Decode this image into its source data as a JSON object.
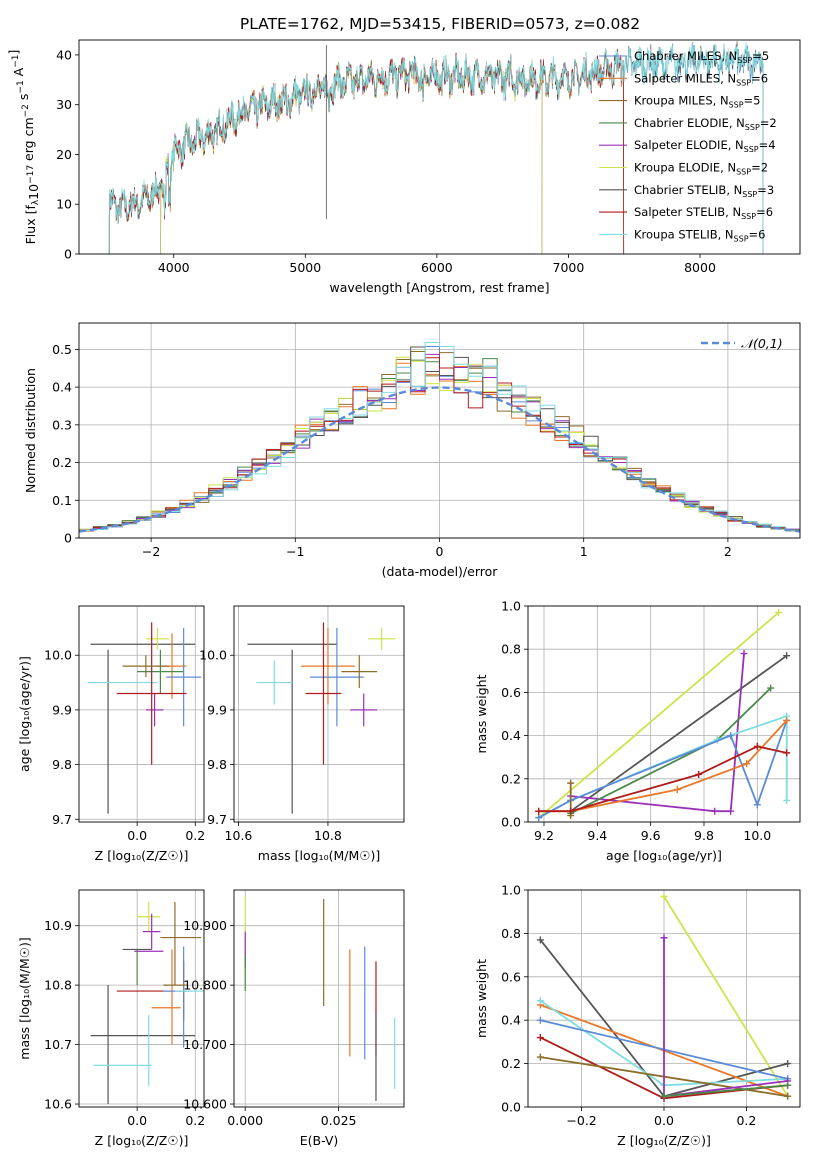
{
  "title": "PLATE=1762, MJD=53415, FIBERID=0573, z=0.082",
  "colors": {
    "Chabrier MILES": "#5b8bd8",
    "Salpeter MILES": "#e8782a",
    "Kroupa MILES": "#8c6d2c",
    "Chabrier ELODIE": "#4a8a4a",
    "Salpeter ELODIE": "#9b30b8",
    "Kroupa ELODIE": "#cfe34a",
    "Chabrier STELIB": "#555555",
    "Salpeter STELIB": "#b01c1c",
    "Kroupa STELIB": "#7fdde0"
  },
  "chart_data": [
    {
      "type": "line",
      "id": "spectrum",
      "xlabel": "wavelength [Angstrom, rest frame]",
      "ylabel": "Flux [f",
      "ylabel_parts": [
        "Flux [f",
        "λ",
        "10",
        "−17",
        " erg cm",
        "−2",
        " s",
        "−1",
        " A",
        "−1",
        "]"
      ],
      "xlim": [
        3280,
        8760
      ],
      "ylim": [
        0,
        43
      ],
      "xticks": [
        4000,
        5000,
        6000,
        7000,
        8000
      ],
      "yticks": [
        0,
        10,
        20,
        30,
        40
      ],
      "legend_position": "upper-right",
      "spectrum_knots": [
        [
          3510,
          10
        ],
        [
          3600,
          9
        ],
        [
          3800,
          11
        ],
        [
          3900,
          13
        ],
        [
          4000,
          20
        ],
        [
          4100,
          22
        ],
        [
          4300,
          24
        ],
        [
          4500,
          28
        ],
        [
          4800,
          30.5
        ],
        [
          5000,
          32
        ],
        [
          5200,
          34
        ],
        [
          5500,
          35
        ],
        [
          5800,
          36
        ],
        [
          6000,
          35.5
        ],
        [
          6300,
          35.5
        ],
        [
          6600,
          35
        ],
        [
          7000,
          35
        ],
        [
          7300,
          37
        ],
        [
          7500,
          38
        ],
        [
          7800,
          38
        ],
        [
          8000,
          38.5
        ],
        [
          8300,
          38.5
        ],
        [
          8500,
          38.5
        ]
      ],
      "series": [
        {
          "name": "Chabrier MILES",
          "nssp": "5",
          "lambda_min": 3510,
          "lambda_max": 8480
        },
        {
          "name": "Salpeter MILES",
          "nssp": "6",
          "lambda_min": 3510,
          "lambda_max": 7420
        },
        {
          "name": "Kroupa MILES",
          "nssp": "5",
          "lambda_min": 3510,
          "lambda_max": 7420
        },
        {
          "name": "Chabrier ELODIE",
          "nssp": "2",
          "lambda_min": 3900,
          "lambda_max": 6800
        },
        {
          "name": "Salpeter ELODIE",
          "nssp": "4",
          "lambda_min": 3900,
          "lambda_max": 6800
        },
        {
          "name": "Kroupa ELODIE",
          "nssp": "2",
          "lambda_min": 3900,
          "lambda_max": 6800
        },
        {
          "name": "Chabrier STELIB",
          "nssp": "3",
          "lambda_min": 3510,
          "lambda_max": 8480
        },
        {
          "name": "Salpeter STELIB",
          "nssp": "6",
          "lambda_min": 3510,
          "lambda_max": 7420
        },
        {
          "name": "Kroupa STELIB",
          "nssp": "6",
          "lambda_min": 3510,
          "lambda_max": 8480
        }
      ]
    },
    {
      "type": "bar",
      "id": "residuals",
      "xlabel": "(data-model)/error",
      "ylabel": "Normed distribution",
      "xlim": [
        -2.5,
        2.5
      ],
      "ylim": [
        0,
        0.57
      ],
      "xticks": [
        -2,
        -1,
        0,
        1,
        2
      ],
      "yticks": [
        0.0,
        0.1,
        0.2,
        0.3,
        0.4,
        0.5
      ],
      "grid": true,
      "bin_width": 0.1,
      "normal_curve": {
        "name": "𝒩(0,1)",
        "mu": 0,
        "sigma": 1,
        "color": "#5b8bd8"
      },
      "histograms": [
        {
          "name": "Chabrier MILES",
          "offset": 0.0
        },
        {
          "name": "Salpeter MILES",
          "offset": 0.03
        },
        {
          "name": "Kroupa MILES",
          "offset": -0.02
        },
        {
          "name": "Chabrier ELODIE",
          "offset": 0.05
        },
        {
          "name": "Salpeter ELODIE",
          "offset": -0.04
        },
        {
          "name": "Kroupa ELODIE",
          "offset": 0.06
        },
        {
          "name": "Chabrier STELIB",
          "offset": -0.01
        },
        {
          "name": "Salpeter STELIB",
          "offset": 0.02
        },
        {
          "name": "Kroupa STELIB",
          "offset": -0.05
        }
      ]
    },
    {
      "type": "scatter",
      "id": "age-vs-Z",
      "xlabel": "Z [log₁₀(Z/Z☉)]",
      "ylabel": "age  [log₁₀(age/yr)]",
      "xlim": [
        -0.2,
        0.23
      ],
      "ylim": [
        9.695,
        10.09
      ],
      "xticks": [
        0.0,
        0.2
      ],
      "yticks": [
        9.7,
        9.8,
        9.9,
        10.0
      ],
      "grid": true,
      "errorbars": [
        {
          "name": "Chabrier STELIB",
          "x": 0.02,
          "xerr": 0.18,
          "y": 10.02,
          "yerr": 0.0
        },
        {
          "name": "Chabrier STELIB",
          "x": -0.1,
          "xerr": 0.0,
          "y": 9.86,
          "yerr": 0.15
        },
        {
          "name": "Kroupa ELODIE",
          "x": 0.07,
          "xerr": 0.04,
          "y": 10.03,
          "yerr": 0.02
        },
        {
          "name": "Salpeter MILES",
          "x": 0.12,
          "xerr": 0.05,
          "y": 9.98,
          "yerr": 0.06
        },
        {
          "name": "Chabrier ELODIE",
          "x": 0.08,
          "xerr": 0.08,
          "y": 9.97,
          "yerr": 0.04
        },
        {
          "name": "Chabrier MILES",
          "x": 0.16,
          "xerr": 0.06,
          "y": 9.96,
          "yerr": 0.09
        },
        {
          "name": "Salpeter ELODIE",
          "x": 0.06,
          "xerr": 0.03,
          "y": 9.9,
          "yerr": 0.03
        },
        {
          "name": "Kroupa STELIB",
          "x": -0.05,
          "xerr": 0.12,
          "y": 9.95,
          "yerr": 0.0
        },
        {
          "name": "Salpeter STELIB",
          "x": 0.05,
          "xerr": 0.12,
          "y": 9.93,
          "yerr": 0.13
        },
        {
          "name": "Kroupa MILES",
          "x": 0.03,
          "xerr": 0.08,
          "y": 9.98,
          "yerr": 0.02
        }
      ]
    },
    {
      "type": "scatter",
      "id": "age-vs-mass",
      "xlabel": "mass [log₁₀(M/M☉)]",
      "ylabel": "",
      "xlim": [
        10.59,
        10.97
      ],
      "ylim": [
        9.695,
        10.09
      ],
      "xticks": [
        10.6,
        10.8
      ],
      "yticks": [
        9.7,
        9.8,
        9.9,
        10.0
      ],
      "grid": true,
      "errorbars": [
        {
          "name": "Chabrier STELIB",
          "x": 10.72,
          "xerr": 0.1,
          "y": 10.02,
          "yerr": 0.0
        },
        {
          "name": "Chabrier STELIB",
          "x": 10.72,
          "xerr": 0.0,
          "y": 9.86,
          "yerr": 0.15
        },
        {
          "name": "Kroupa STELIB",
          "x": 10.68,
          "xerr": 0.04,
          "y": 9.95,
          "yerr": 0.04
        },
        {
          "name": "Kroupa ELODIE",
          "x": 10.92,
          "xerr": 0.03,
          "y": 10.03,
          "yerr": 0.02
        },
        {
          "name": "Salpeter MILES",
          "x": 10.8,
          "xerr": 0.06,
          "y": 9.98,
          "yerr": 0.07
        },
        {
          "name": "Chabrier MILES",
          "x": 10.82,
          "xerr": 0.06,
          "y": 9.96,
          "yerr": 0.09
        },
        {
          "name": "Salpeter ELODIE",
          "x": 10.88,
          "xerr": 0.03,
          "y": 9.9,
          "yerr": 0.03
        },
        {
          "name": "Salpeter STELIB",
          "x": 10.79,
          "xerr": 0.04,
          "y": 9.93,
          "yerr": 0.13
        },
        {
          "name": "Kroupa MILES",
          "x": 10.87,
          "xerr": 0.04,
          "y": 9.97,
          "yerr": 0.03
        }
      ]
    },
    {
      "type": "line",
      "id": "mass-weight-vs-age",
      "xlabel": "age  [log₁₀(age/yr)]",
      "ylabel": "mass weight",
      "xlim": [
        9.14,
        10.16
      ],
      "ylim": [
        0,
        1.0
      ],
      "xticks": [
        9.2,
        9.4,
        9.6,
        9.8,
        10.0
      ],
      "yticks": [
        0.0,
        0.2,
        0.4,
        0.6,
        0.8,
        1.0
      ],
      "grid": true,
      "series": [
        {
          "name": "Kroupa ELODIE",
          "x": [
            9.18,
            10.08
          ],
          "y": [
            0.02,
            0.97
          ]
        },
        {
          "name": "Chabrier STELIB",
          "x": [
            9.3,
            10.11
          ],
          "y": [
            0.05,
            0.77
          ]
        },
        {
          "name": "Salpeter ELODIE",
          "x": [
            9.3,
            9.84,
            9.9,
            9.95
          ],
          "y": [
            0.12,
            0.05,
            0.05,
            0.78
          ]
        },
        {
          "name": "Chabrier ELODIE",
          "x": [
            9.3,
            9.85,
            10.05
          ],
          "y": [
            0.04,
            0.38,
            0.62
          ]
        },
        {
          "name": "Kroupa STELIB",
          "x": [
            9.18,
            9.3,
            9.85,
            10.11,
            10.11
          ],
          "y": [
            0.02,
            0.1,
            0.38,
            0.49,
            0.1
          ]
        },
        {
          "name": "Chabrier MILES",
          "x": [
            9.18,
            9.3,
            9.9,
            10.0,
            10.11
          ],
          "y": [
            0.02,
            0.1,
            0.4,
            0.08,
            0.47
          ]
        },
        {
          "name": "Salpeter MILES",
          "x": [
            9.18,
            9.3,
            9.7,
            9.96,
            10.11
          ],
          "y": [
            0.05,
            0.05,
            0.15,
            0.27,
            0.47
          ]
        },
        {
          "name": "Kroupa MILES",
          "x": [
            9.3,
            9.3
          ],
          "y": [
            0.03,
            0.18
          ]
        },
        {
          "name": "Salpeter STELIB",
          "x": [
            9.18,
            9.3,
            9.78,
            10.0,
            10.11
          ],
          "y": [
            0.05,
            0.05,
            0.22,
            0.35,
            0.32
          ]
        }
      ]
    },
    {
      "type": "scatter",
      "id": "mass-vs-Z",
      "xlabel": "Z [log₁₀(Z/Z☉)]",
      "ylabel": "mass [log₁₀(M/M☉)]",
      "xlim": [
        -0.2,
        0.23
      ],
      "ylim": [
        10.595,
        10.96
      ],
      "xticks": [
        0.0,
        0.2
      ],
      "yticks": [
        10.6,
        10.7,
        10.8,
        10.9
      ],
      "grid": true,
      "errorbars": [
        {
          "name": "Chabrier STELIB",
          "x": 0.02,
          "xerr": 0.18,
          "y": 10.715,
          "yerr": 0.0
        },
        {
          "name": "Chabrier STELIB",
          "x": -0.1,
          "xerr": 0.0,
          "y": 10.7,
          "yerr": 0.1
        },
        {
          "name": "Kroupa STELIB",
          "x": -0.05,
          "xerr": 0.1,
          "y": 10.665,
          "yerr": 0.0
        },
        {
          "name": "Kroupa STELIB",
          "x": 0.04,
          "xerr": 0.0,
          "y": 10.69,
          "yerr": 0.06
        },
        {
          "name": "Kroupa ELODIE",
          "x": 0.04,
          "xerr": 0.04,
          "y": 10.915,
          "yerr": 0.025
        },
        {
          "name": "Salpeter ELODIE",
          "x": 0.05,
          "xerr": 0.03,
          "y": 10.89,
          "yerr": 0.03
        },
        {
          "name": "Chabrier STELIB",
          "x": 0.0,
          "xerr": 0.05,
          "y": 10.86,
          "yerr": 0.0
        },
        {
          "name": "Salpeter ELODIE",
          "x": 0.04,
          "xerr": 0.05,
          "y": 10.857,
          "yerr": 0.0
        },
        {
          "name": "Chabrier ELODIE",
          "x": 0.0,
          "xerr": 0.0,
          "y": 10.83,
          "yerr": 0.03
        },
        {
          "name": "Salpeter STELIB",
          "x": 0.05,
          "xerr": 0.12,
          "y": 10.79,
          "yerr": 0.0
        },
        {
          "name": "Salpeter STELIB",
          "x": 0.16,
          "xerr": 0.0,
          "y": 10.79,
          "yerr": 0.05
        },
        {
          "name": "Salpeter MILES",
          "x": 0.12,
          "xerr": 0.0,
          "y": 10.78,
          "yerr": 0.08
        },
        {
          "name": "Salpeter MILES",
          "x": 0.1,
          "xerr": 0.05,
          "y": 10.762,
          "yerr": 0.0
        },
        {
          "name": "Chabrier MILES",
          "x": 0.16,
          "xerr": 0.0,
          "y": 10.78,
          "yerr": 0.085
        },
        {
          "name": "Chabrier MILES",
          "x": 0.14,
          "xerr": 0.05,
          "y": 10.79,
          "yerr": 0.0
        },
        {
          "name": "Kroupa STELIB",
          "x": 0.18,
          "xerr": 0.05,
          "y": 10.79,
          "yerr": 0.0
        },
        {
          "name": "Kroupa MILES",
          "x": 0.13,
          "xerr": 0.04,
          "y": 10.8,
          "yerr": 0.0
        },
        {
          "name": "Kroupa MILES",
          "x": 0.15,
          "xerr": 0.07,
          "y": 10.88,
          "yerr": 0.0
        },
        {
          "name": "Kroupa MILES",
          "x": 0.13,
          "xerr": 0.0,
          "y": 10.87,
          "yerr": 0.07
        }
      ]
    },
    {
      "type": "scatter",
      "id": "mass-vs-EBV",
      "xlabel": "E(B-V)",
      "ylabel": "",
      "xlim": [
        -0.003,
        0.0425
      ],
      "ylim": [
        10.595,
        10.96
      ],
      "xticks": [
        0.0,
        0.025
      ],
      "yticks": [
        10.6,
        10.7,
        10.8,
        10.9
      ],
      "grid": true,
      "errorbars": [
        {
          "name": "Kroupa ELODIE",
          "x": 0.0,
          "xerr": 0.0,
          "y": 10.88,
          "yerr": 0.07
        },
        {
          "name": "Salpeter ELODIE",
          "x": 0.0,
          "xerr": 0.0,
          "y": 10.86,
          "yerr": 0.03
        },
        {
          "name": "Chabrier ELODIE",
          "x": 0.0,
          "xerr": 0.0,
          "y": 10.82,
          "yerr": 0.03
        },
        {
          "name": "Kroupa MILES",
          "x": 0.021,
          "xerr": 0.0,
          "y": 10.855,
          "yerr": 0.09
        },
        {
          "name": "Salpeter MILES",
          "x": 0.028,
          "xerr": 0.0,
          "y": 10.77,
          "yerr": 0.09
        },
        {
          "name": "Chabrier MILES",
          "x": 0.032,
          "xerr": 0.0,
          "y": 10.77,
          "yerr": 0.095
        },
        {
          "name": "Salpeter STELIB",
          "x": 0.035,
          "xerr": 0.0,
          "y": 10.76,
          "yerr": 0.08
        },
        {
          "name": "Chabrier STELIB",
          "x": 0.035,
          "xerr": 0.0,
          "y": 10.68,
          "yerr": 0.075
        },
        {
          "name": "Kroupa STELIB",
          "x": 0.04,
          "xerr": 0.0,
          "y": 10.685,
          "yerr": 0.06
        }
      ]
    },
    {
      "type": "line",
      "id": "mass-weight-vs-Z",
      "xlabel": "Z [log₁₀(Z/Z☉)]",
      "ylabel": "mass weight",
      "xlim": [
        -0.33,
        0.33
      ],
      "ylim": [
        0,
        1.0
      ],
      "xticks": [
        -0.2,
        0.0,
        0.2
      ],
      "yticks": [
        0.0,
        0.2,
        0.4,
        0.6,
        0.8,
        1.0
      ],
      "grid": true,
      "series": [
        {
          "name": "Kroupa ELODIE",
          "x": [
            0.0,
            0.3
          ],
          "y": [
            0.97,
            0.05
          ]
        },
        {
          "name": "Chabrier STELIB",
          "x": [
            -0.3,
            0.0,
            0.3
          ],
          "y": [
            0.77,
            0.05,
            0.2
          ]
        },
        {
          "name": "Salpeter MILES",
          "x": [
            -0.3,
            0.3
          ],
          "y": [
            0.47,
            0.05
          ]
        },
        {
          "name": "Kroupa STELIB",
          "x": [
            -0.3,
            0.0,
            0.3
          ],
          "y": [
            0.49,
            0.1,
            0.13
          ]
        },
        {
          "name": "Chabrier MILES",
          "x": [
            -0.3,
            0.3
          ],
          "y": [
            0.4,
            0.13
          ]
        },
        {
          "name": "Salpeter STELIB",
          "x": [
            -0.3,
            0.0,
            0.3
          ],
          "y": [
            0.32,
            0.04,
            0.1
          ]
        },
        {
          "name": "Kroupa MILES",
          "x": [
            -0.3,
            0.3
          ],
          "y": [
            0.23,
            0.05
          ]
        },
        {
          "name": "Salpeter ELODIE",
          "x": [
            0.0,
            0.0,
            0.3
          ],
          "y": [
            0.78,
            0.05,
            0.12
          ]
        },
        {
          "name": "Chabrier ELODIE",
          "x": [
            0.0,
            0.3
          ],
          "y": [
            0.05,
            0.1
          ]
        }
      ]
    }
  ]
}
